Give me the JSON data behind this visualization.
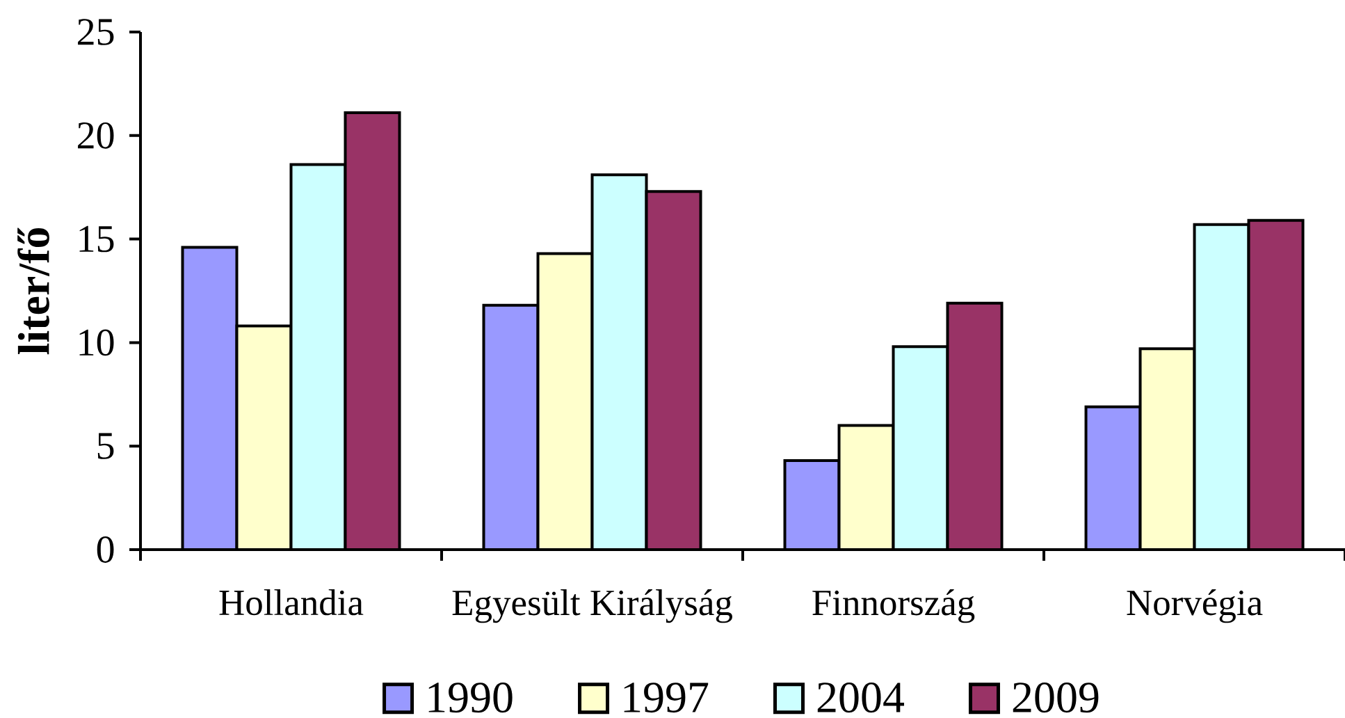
{
  "chart_data": {
    "type": "bar",
    "ylabel": "liter/fő",
    "categories": [
      "Hollandia",
      "Egyesült Királyság",
      "Finnország",
      "Norvégia"
    ],
    "series": [
      {
        "name": "1990",
        "color": "#9999ff",
        "values": [
          14.6,
          11.8,
          4.3,
          6.9
        ]
      },
      {
        "name": "1997",
        "color": "#ffffcc",
        "values": [
          10.8,
          14.3,
          6.0,
          9.7
        ]
      },
      {
        "name": "2004",
        "color": "#ccffff",
        "values": [
          18.6,
          18.1,
          9.8,
          15.7
        ]
      },
      {
        "name": "2009",
        "color": "#993366",
        "values": [
          21.1,
          17.3,
          11.9,
          15.9
        ]
      }
    ],
    "ylim": [
      0,
      25
    ],
    "yticks": [
      0,
      5,
      10,
      15,
      20,
      25
    ],
    "grid": false,
    "legend": "bottom"
  }
}
